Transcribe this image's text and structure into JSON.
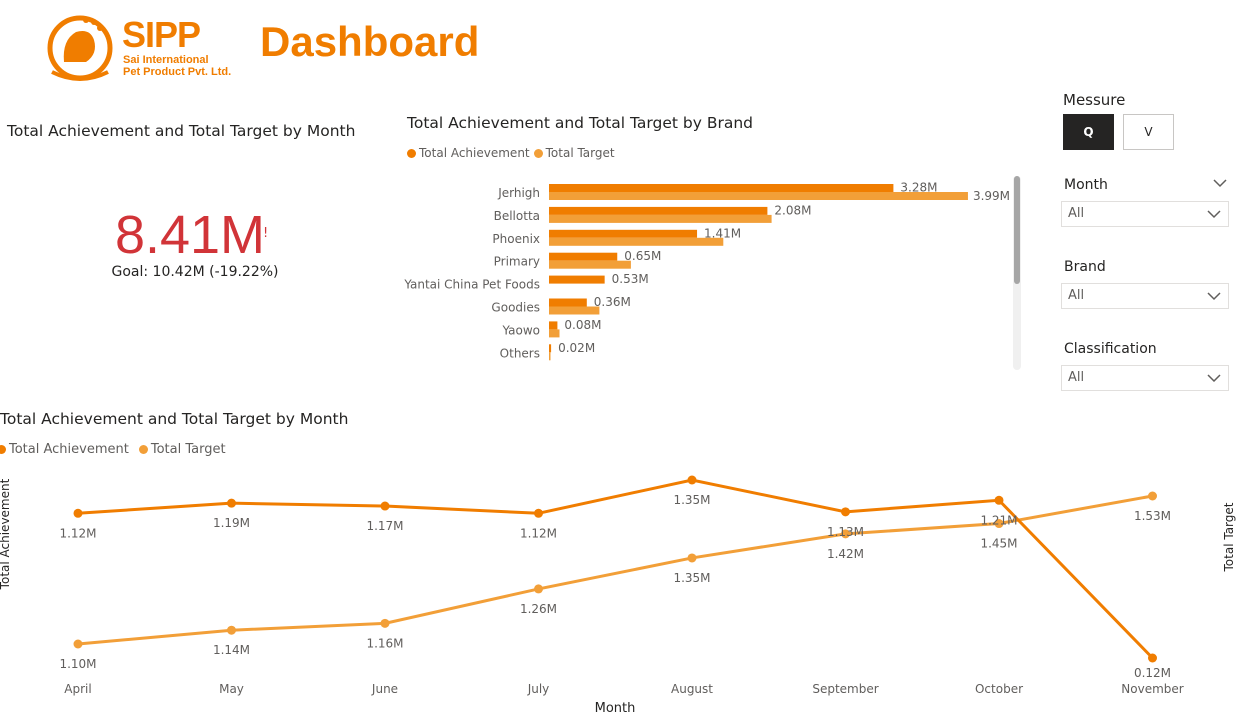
{
  "header": {
    "logo_name": "SIPP",
    "logo_subtitle_line1": "Sai International",
    "logo_subtitle_line2": "Pet Product Pvt. Ltd.",
    "title": "Dashboard"
  },
  "kpi_card": {
    "title": "Total Achievement and Total Target by Month",
    "value": "8.41M",
    "alert": "!",
    "goal": "Goal: 10.42M (-19.22%)"
  },
  "legend": {
    "achievement": "Total Achievement",
    "target": "Total Target"
  },
  "colors": {
    "achievement": "#f07d00",
    "target": "#f29f38",
    "kpi": "#d13438"
  },
  "slicers": {
    "measure_title": "Messure",
    "measure_options": [
      "Q",
      "V"
    ],
    "month_label": "Month",
    "month_value": "All",
    "brand_label": "Brand",
    "brand_value": "All",
    "classification_label": "Classification",
    "classification_value": "All"
  },
  "chart_data": [
    {
      "type": "bar",
      "orientation": "horizontal",
      "title": "Total Achievement and Total Target by Brand",
      "categories": [
        "Jerhigh",
        "Bellotta",
        "Phoenix",
        "Primary",
        "Yantai China Pet Foods",
        "Goodies",
        "Yaowo",
        "Others"
      ],
      "series": [
        {
          "name": "Total Achievement",
          "values": [
            3.28,
            2.08,
            1.41,
            0.65,
            0.53,
            0.36,
            0.08,
            0.02
          ]
        },
        {
          "name": "Total Target",
          "values": [
            3.99,
            2.12,
            1.66,
            0.78,
            0.0,
            0.48,
            0.1,
            0.01
          ]
        }
      ],
      "data_labels": [
        "3.28M",
        "2.08M",
        "1.41M",
        "0.65M",
        "0.53M",
        "0.36M",
        "0.08M",
        "0.02M"
      ],
      "target_labels": [
        "3.99M"
      ],
      "legend": "top-left",
      "unit": "M"
    },
    {
      "type": "line",
      "title": "Total Achievement and Total Target by Month",
      "xlabel": "Month",
      "ylabel_left": "Total Achievement",
      "ylabel_right": "Total Target",
      "categories": [
        "April",
        "May",
        "June",
        "July",
        "August",
        "September",
        "October",
        "November"
      ],
      "series": [
        {
          "name": "Total Achievement",
          "values": [
            1.12,
            1.19,
            1.17,
            1.12,
            1.35,
            1.13,
            1.21,
            0.12
          ],
          "labels": [
            "1.12M",
            "1.19M",
            "1.17M",
            "1.12M",
            "1.35M",
            "1.13M",
            "1.21M",
            "0.12M"
          ]
        },
        {
          "name": "Total Target",
          "values": [
            1.1,
            1.14,
            1.16,
            1.26,
            1.35,
            1.42,
            1.45,
            1.53
          ],
          "labels": [
            "1.10M",
            "1.14M",
            "1.16M",
            "1.26M",
            "1.35M",
            "1.42M",
            "1.45M",
            "1.53M"
          ]
        }
      ],
      "legend": "top-left",
      "grid": false
    }
  ]
}
